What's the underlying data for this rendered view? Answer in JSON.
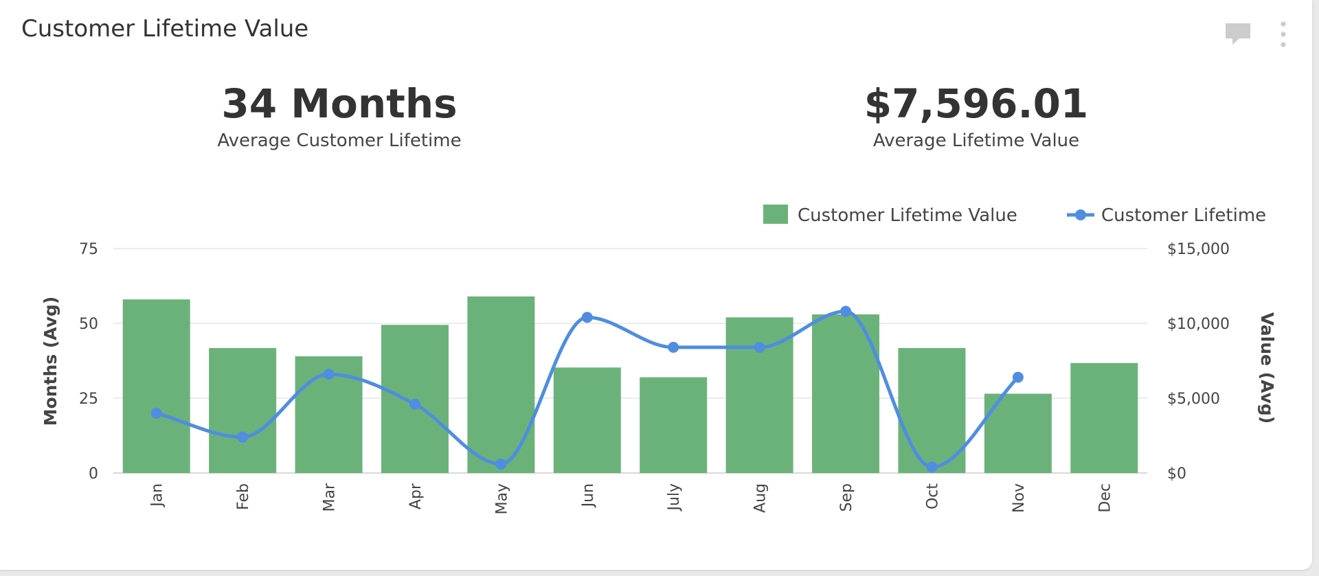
{
  "card": {
    "title": "Customer Lifetime Value",
    "icons": [
      "comment-icon",
      "more-vertical-icon"
    ]
  },
  "kpis": [
    {
      "value": "34 Months",
      "label": "Average Customer Lifetime"
    },
    {
      "value": "$7,596.01",
      "label": "Average Lifetime Value"
    }
  ],
  "chart_data": {
    "type": "bar",
    "categories": [
      "Jan",
      "Feb",
      "Mar",
      "Apr",
      "May",
      "Jun",
      "July",
      "Aug",
      "Sep",
      "Oct",
      "Nov",
      "Dec"
    ],
    "series": [
      {
        "name": "Customer Lifetime Value",
        "type": "bar",
        "axis": "right",
        "color": "#6bb27a",
        "values": [
          11600,
          8350,
          7800,
          9900,
          11800,
          7050,
          6400,
          10400,
          10600,
          8350,
          5300,
          7350
        ]
      },
      {
        "name": "Customer Lifetime",
        "type": "line",
        "axis": "left",
        "color": "#4f8de0",
        "values": [
          20,
          12,
          33,
          23,
          3,
          52,
          42,
          42,
          54,
          2,
          32,
          null
        ]
      }
    ],
    "left_axis": {
      "label": "Months (Avg)",
      "ticks": [
        "75",
        "50",
        "25",
        "0"
      ],
      "range": [
        0,
        75
      ]
    },
    "right_axis": {
      "label": "Value (Avg)",
      "ticks": [
        "$15,000",
        "$10,000",
        "$5,000",
        "$0"
      ],
      "range": [
        0,
        15000
      ]
    },
    "grid": true,
    "legend": "top-right"
  }
}
